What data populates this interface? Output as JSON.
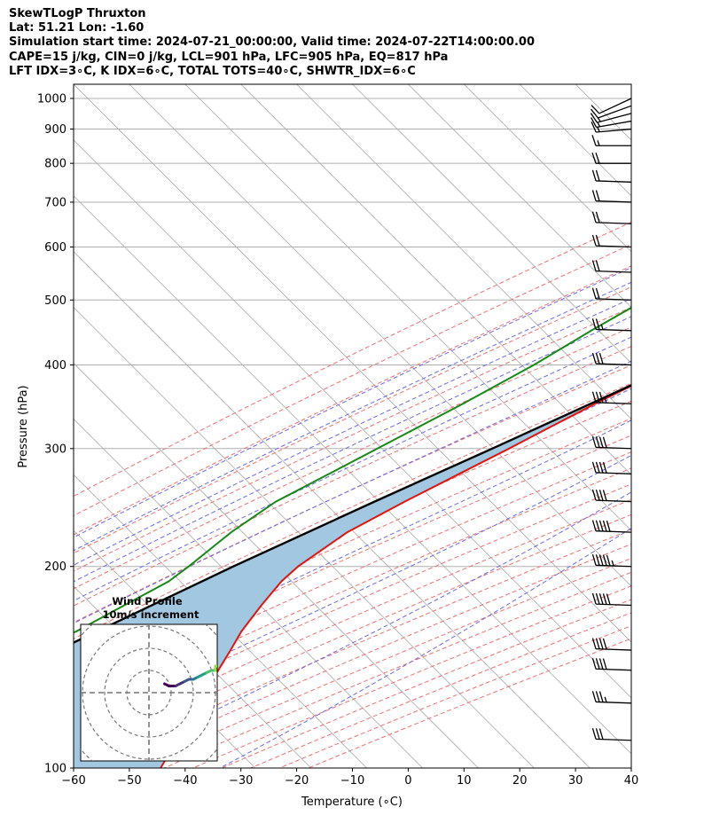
{
  "header": {
    "title": "SkewTLogP Thruxton",
    "location": "Lat: 51.21   Lon: -1.60",
    "times": "Simulation start time: 2024-07-21_00:00:00, Valid time: 2024-07-22T14:00:00.00",
    "params": "CAPE=15 j/kg, CIN=0 j/kg, LCL=901 hPa, LFC=905 hPa, EQ=817 hPa",
    "indices": "LFT IDX=3∘C, K IDX=6∘C, TOTAL TOTS=40∘C, SHWTR_IDX=6∘C"
  },
  "chart_data": {
    "type": "line",
    "subtype": "skew-t log-p",
    "xlabel": "Temperature (∘C)",
    "ylabel": "Pressure (hPa)",
    "xlim": [
      -60,
      40
    ],
    "ylim": [
      1050,
      100
    ],
    "y_scale": "log",
    "x_ticks": [
      -60,
      -50,
      -40,
      -30,
      -20,
      -10,
      0,
      10,
      20,
      30,
      40
    ],
    "y_ticks": [
      1000,
      900,
      800,
      700,
      600,
      500,
      400,
      300,
      200,
      100
    ],
    "grid": true,
    "colors": {
      "temperature": "#e8120c",
      "dewpoint": "#168a16",
      "parcel": "#000000",
      "cape_fill": "#a2c7e0",
      "isotherm": "#aaaaaa",
      "dry_adiabat": "#f07070",
      "moist_adiabat": "#6a6ae8",
      "mixing_ratio": "#a060c8"
    },
    "series": [
      {
        "key": "temperature",
        "pressure": [
          1000,
          975,
          950,
          925,
          900,
          875,
          850,
          800,
          750,
          700,
          650,
          600,
          550,
          500,
          450,
          400,
          350,
          300,
          275,
          250,
          225,
          200,
          190,
          175,
          160,
          150,
          140,
          125,
          110,
          100
        ],
        "values": [
          22.5,
          21.0,
          19.3,
          18.0,
          16.8,
          15.9,
          15.2,
          12.4,
          8.6,
          4.1,
          0.4,
          -3.6,
          -8.1,
          -12.6,
          -18.6,
          -24.6,
          -31.8,
          -39.2,
          -43.6,
          -48.4,
          -53.2,
          -55.9,
          -56.2,
          -55.5,
          -54.4,
          -53.0,
          -51.6,
          -49.2,
          -46.4,
          -44.4
        ]
      },
      {
        "key": "dewpoint",
        "pressure": [
          1000,
          950,
          925,
          900,
          850,
          800,
          775,
          750,
          700,
          650,
          600,
          550,
          500,
          450,
          400,
          350,
          300,
          250,
          225,
          200,
          190,
          175,
          160,
          150,
          140,
          125,
          110,
          100
        ],
        "values": [
          16.0,
          15.3,
          14.6,
          12.8,
          8.6,
          4.8,
          0.6,
          -7.4,
          -26.0,
          -38.5,
          -39.0,
          -39.1,
          -41.5,
          -45.6,
          -49.7,
          -55.5,
          -62.8,
          -71.5,
          -74.0,
          -75.5,
          -76.4,
          -80.1,
          -84.0,
          -89.0,
          -92.5,
          -87.0,
          -81.0,
          -77.0
        ]
      },
      {
        "key": "parcel",
        "pressure": [
          1000,
          950,
          901,
          850,
          800,
          700,
          600,
          500,
          400,
          300,
          250,
          200,
          150,
          125,
          100
        ],
        "values": [
          22.5,
          18.2,
          13.9,
          11.7,
          9.4,
          4.1,
          -2.9,
          -12.0,
          -24.3,
          -42.2,
          -53.8,
          -67.5,
          -84.0,
          -93.8,
          -105.0
        ]
      }
    ],
    "wind_barbs": {
      "pressure": [
        1000,
        975,
        950,
        925,
        900,
        850,
        800,
        750,
        700,
        650,
        600,
        550,
        500,
        450,
        400,
        350,
        300,
        275,
        250,
        225,
        200,
        175,
        150,
        140,
        125,
        110
      ],
      "direction_deg": [
        245,
        250,
        255,
        260,
        265,
        270,
        270,
        272,
        272,
        272,
        272,
        272,
        272,
        272,
        272,
        272,
        272,
        272,
        272,
        272,
        272,
        272,
        272,
        272,
        272,
        272
      ],
      "speed_ms": [
        5,
        6,
        7,
        7,
        8,
        9,
        10,
        10,
        10,
        10,
        10,
        10,
        10,
        12,
        15,
        18,
        20,
        20,
        20,
        25,
        28,
        25,
        20,
        20,
        18,
        15
      ]
    },
    "inset": {
      "title": "Wind Profile",
      "subtitle": "10m/s increment",
      "type": "hodograph",
      "ring_step_ms": 10,
      "u": [
        7,
        9,
        12,
        14,
        16,
        18,
        20,
        22,
        24,
        26,
        28,
        30,
        30,
        32,
        33
      ],
      "v": [
        4,
        3,
        3,
        4,
        5,
        6,
        6,
        7,
        8,
        9,
        10,
        10,
        12,
        12,
        12
      ]
    }
  }
}
